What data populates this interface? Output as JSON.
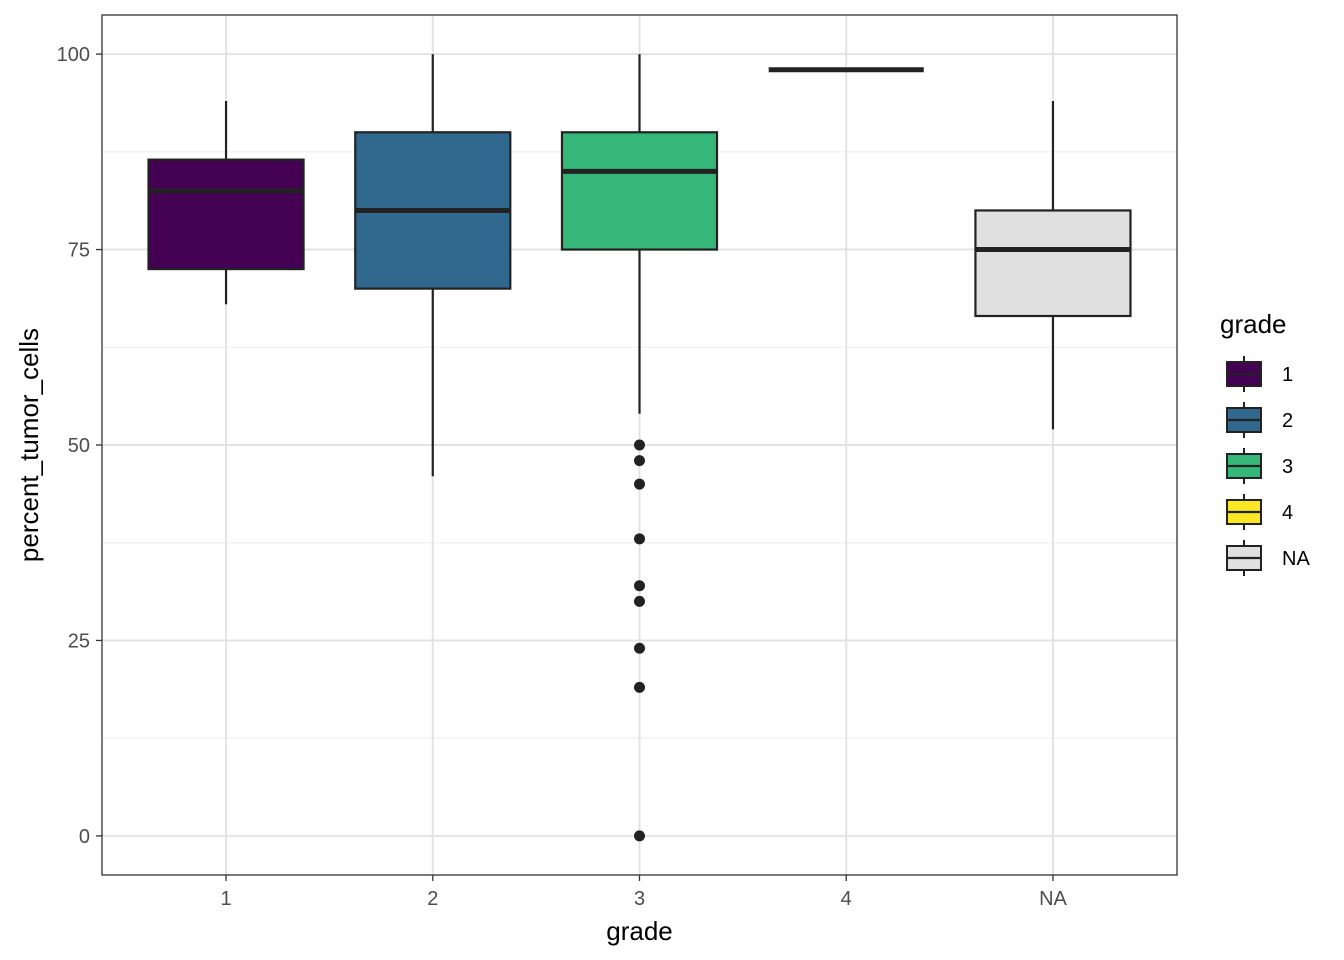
{
  "chart_data": {
    "type": "boxplot",
    "xlabel": "grade",
    "ylabel": "percent_tumor_cells",
    "ylim": [
      -5,
      105
    ],
    "yticks": [
      0,
      25,
      50,
      75,
      100
    ],
    "categories": [
      "1",
      "2",
      "3",
      "4",
      "NA"
    ],
    "grid": true,
    "legend": {
      "title": "grade",
      "placement": "right",
      "entries": [
        {
          "label": "1",
          "color": "#440154"
        },
        {
          "label": "2",
          "color": "#31688e"
        },
        {
          "label": "3",
          "color": "#35b779"
        },
        {
          "label": "4",
          "color": "#fde725"
        },
        {
          "label": "NA",
          "color": "#e0e0e0"
        }
      ]
    },
    "boxes": [
      {
        "category": "1",
        "color": "#440154",
        "whisker_low": 68,
        "q1": 72.5,
        "median": 82.5,
        "q3": 86.5,
        "whisker_high": 94,
        "outliers": []
      },
      {
        "category": "2",
        "color": "#31688e",
        "whisker_low": 46,
        "q1": 70,
        "median": 80,
        "q3": 90,
        "whisker_high": 100,
        "outliers": []
      },
      {
        "category": "3",
        "color": "#35b779",
        "whisker_low": 54,
        "q1": 75,
        "median": 85,
        "q3": 90,
        "whisker_high": 100,
        "outliers": [
          50,
          48,
          45,
          38,
          32,
          30,
          24,
          19,
          0
        ]
      },
      {
        "category": "4",
        "color": "#fde725",
        "whisker_low": 98,
        "q1": 98,
        "median": 98,
        "q3": 98,
        "whisker_high": 98,
        "outliers": []
      },
      {
        "category": "NA",
        "color": "#e0e0e0",
        "whisker_low": 52,
        "q1": 66.5,
        "median": 75,
        "q3": 80,
        "whisker_high": 94,
        "outliers": []
      }
    ]
  }
}
